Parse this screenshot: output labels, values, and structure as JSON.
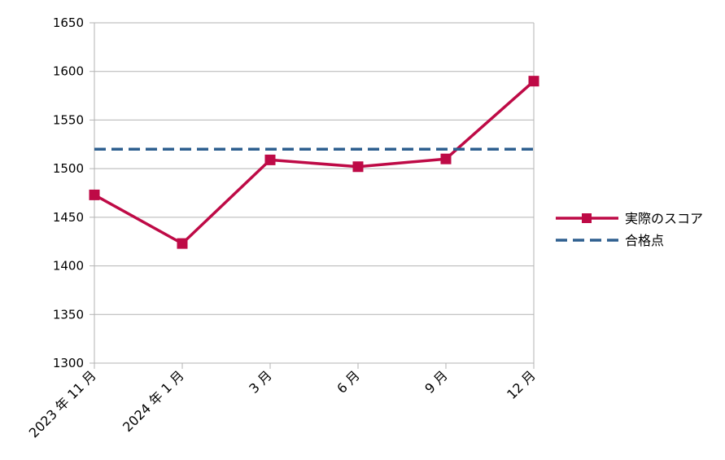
{
  "chart_data": {
    "type": "line",
    "categories": [
      "2023 年 11 月",
      "2024 年 1 月",
      "3 月",
      "6 月",
      "9 月",
      "12 月"
    ],
    "series": [
      {
        "name": "実際のスコア",
        "values": [
          1473,
          1423,
          1509,
          1502,
          1510,
          1590
        ],
        "color": "#be0a46",
        "style": "solid",
        "marker": "square"
      },
      {
        "name": "合格点",
        "values": [
          1520,
          1520,
          1520,
          1520,
          1520,
          1520
        ],
        "color": "#2e5f8f",
        "style": "dashed",
        "marker": "none"
      }
    ],
    "yticks": [
      "1300",
      "1350",
      "1400",
      "1450",
      "1500",
      "1550",
      "1600",
      "1650"
    ],
    "ylim": [
      1300,
      1650
    ],
    "grid": true,
    "legend_position": "right"
  }
}
